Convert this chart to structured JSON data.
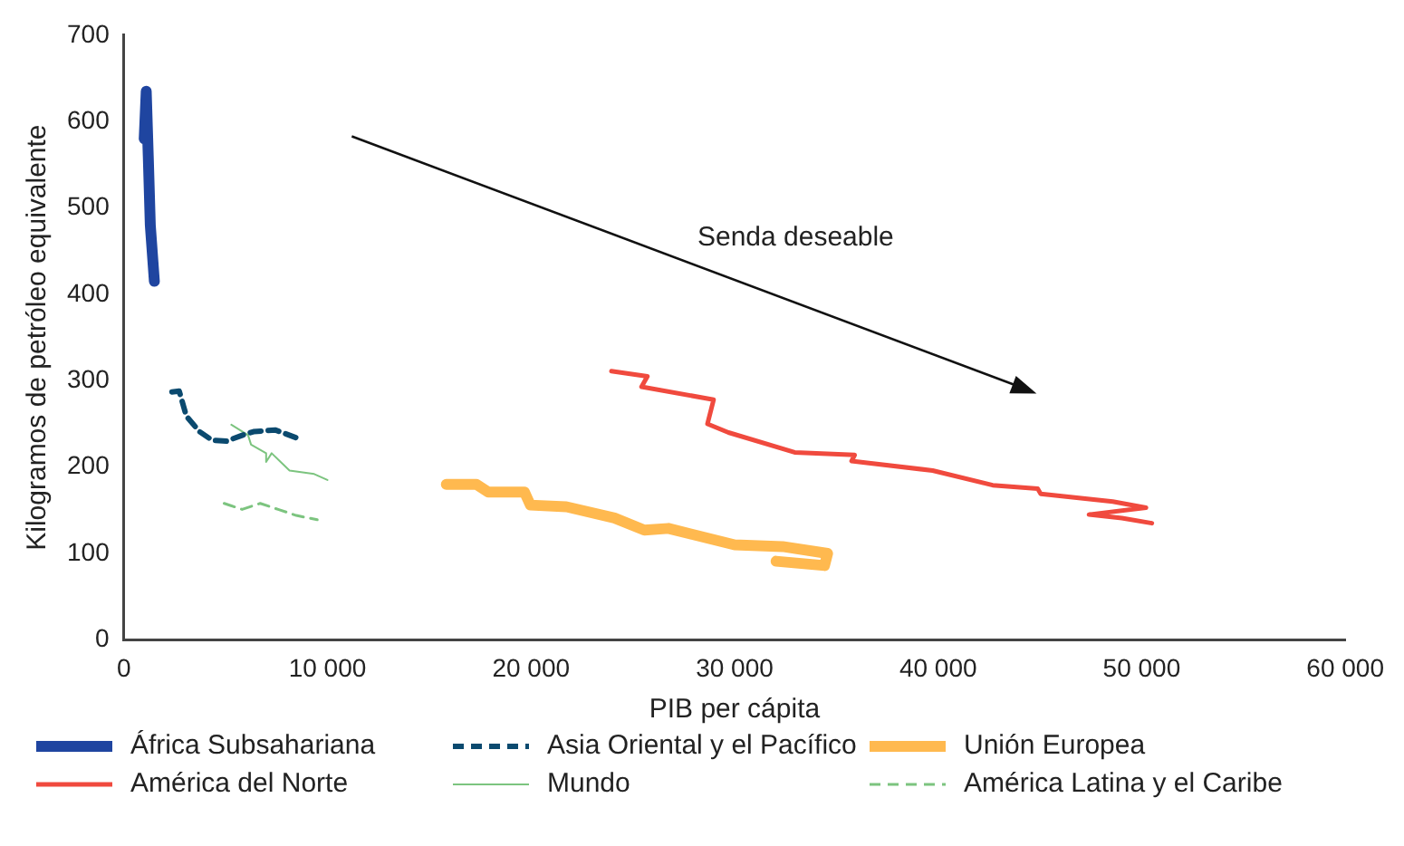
{
  "chart_data": {
    "type": "line",
    "xlabel": "PIB per cápita",
    "ylabel": "Kilogramos de petróleo equivalente",
    "xlim": [
      0,
      60000
    ],
    "xticks": [
      0,
      {
        "value": 10000,
        "label": "10 000"
      },
      {
        "value": 20000,
        "label": "20 000"
      },
      {
        "value": 30000,
        "label": "30 000"
      },
      {
        "value": 40000,
        "label": "40 000"
      },
      {
        "value": 50000,
        "label": "50 000"
      },
      {
        "value": 60000,
        "label": "60 000"
      }
    ],
    "ylim": [
      0,
      700
    ],
    "yticks": [
      0,
      100,
      200,
      300,
      400,
      500,
      600,
      700
    ],
    "grid": false,
    "legend": "bottom",
    "marker": "none",
    "annotations": [
      "Senda deseable"
    ],
    "series": [
      {
        "name": "África Subsahariana",
        "color": "#1f45a0",
        "line_style": "solid",
        "x": [
          1000,
          1100,
          1200,
          1300,
          1500
        ],
        "values": [
          580,
          635,
          560,
          480,
          415
        ]
      },
      {
        "name": "Asia Oriental y el Pacífico",
        "color": "#0b4a6f",
        "line_style": "dashed",
        "x": [
          2360,
          2720,
          3070,
          3720,
          4340,
          5040,
          5840,
          6370,
          7430,
          8580
        ],
        "values": [
          287,
          288,
          259,
          241,
          231,
          230,
          237,
          241,
          243,
          233
        ]
      },
      {
        "name": "Unión Europea",
        "color": "#ffb94f",
        "line_style": "solid",
        "x": [
          15840,
          17320,
          17900,
          19680,
          19970,
          21740,
          24100,
          25570,
          26750,
          30000,
          32360,
          34570,
          34420,
          32040
        ],
        "values": [
          180,
          180,
          171,
          171,
          156,
          154,
          141,
          127,
          129,
          110,
          108,
          100,
          86,
          91
        ]
      },
      {
        "name": "América del Norte",
        "color": "#f04a3e",
        "line_style": "solid",
        "x": [
          23950,
          25720,
          25430,
          28970,
          28670,
          29700,
          32950,
          35900,
          35750,
          39730,
          42680,
          44890,
          45040,
          48580,
          50210,
          47410,
          49030,
          50500
        ],
        "values": [
          311,
          305,
          293,
          278,
          250,
          240,
          217,
          214,
          207,
          196,
          179,
          175,
          169,
          160,
          153,
          145,
          141,
          135
        ]
      },
      {
        "name": "Mundo",
        "color": "#7cc47f",
        "line_style": "solid",
        "x": [
          5280,
          6100,
          6250,
          6990,
          6990,
          7260,
          8140,
          9350,
          10000
        ],
        "values": [
          249,
          237,
          226,
          216,
          206,
          216,
          196,
          192,
          185
        ]
      },
      {
        "name": "América Latina y el Caribe",
        "color": "#7cc47f",
        "line_style": "dashed",
        "x": [
          4930,
          5810,
          6700,
          7580,
          8470,
          9500
        ],
        "values": [
          158,
          151,
          158,
          151,
          144,
          139
        ]
      }
    ]
  }
}
